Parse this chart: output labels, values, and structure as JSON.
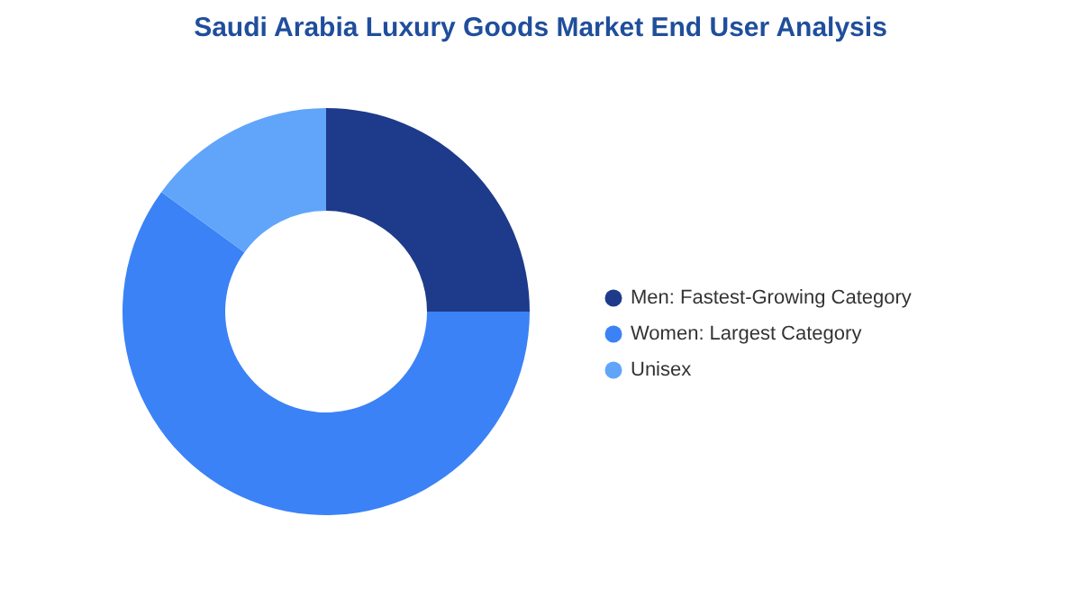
{
  "chart_data": {
    "type": "donut",
    "title": "Saudi Arabia Luxury Goods Market End User Analysis",
    "categories": [
      "Men:  Fastest-Growing Category",
      "Women:  Largest Category",
      "Unisex"
    ],
    "values": [
      25,
      60,
      15
    ],
    "colors": [
      "#1e3a8a",
      "#3b82f6",
      "#60a5fa"
    ],
    "legend": "right"
  }
}
